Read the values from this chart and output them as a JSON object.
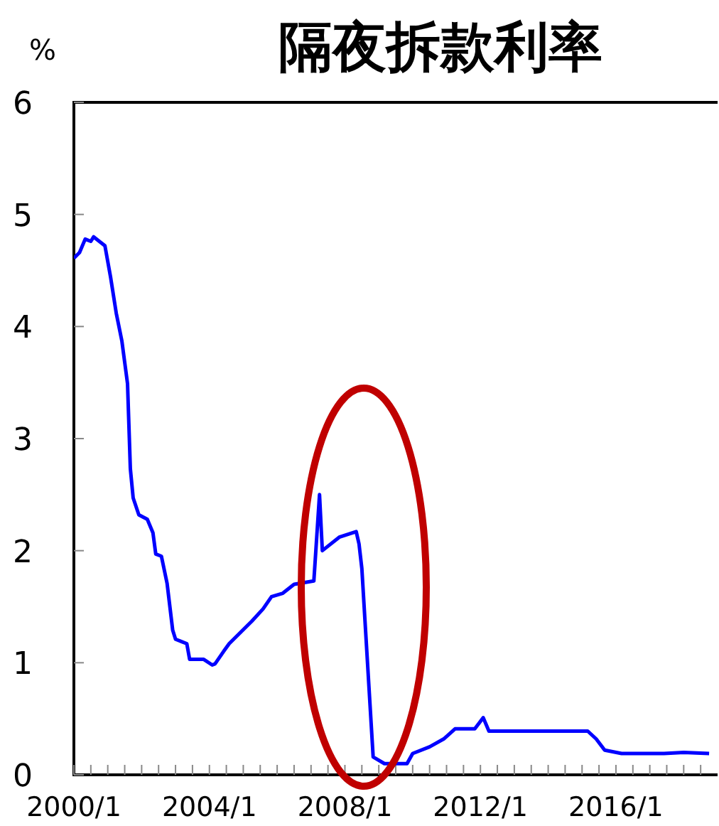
{
  "chart_data": {
    "type": "line",
    "title": "隔夜拆款利率",
    "ylabel": "%",
    "x": [
      "2000-01",
      "2000-03",
      "2000-05",
      "2000-07",
      "2000-08",
      "2000-10",
      "2000-12",
      "2001-02",
      "2001-04",
      "2001-06",
      "2001-08",
      "2001-09",
      "2001-10",
      "2001-12",
      "2002-03",
      "2002-05",
      "2002-06",
      "2002-08",
      "2002-10",
      "2002-12",
      "2003-01",
      "2003-05",
      "2003-06",
      "2003-11",
      "2004-02",
      "2004-03",
      "2004-06",
      "2004-08",
      "2004-12",
      "2005-04",
      "2005-08",
      "2005-11",
      "2006-03",
      "2006-07",
      "2007-02",
      "2007-04",
      "2007-05",
      "2007-11",
      "2008-05",
      "2008-06",
      "2008-07",
      "2008-11",
      "2009-03",
      "2009-11",
      "2010-01",
      "2010-07",
      "2010-12",
      "2011-04",
      "2011-11",
      "2012-02",
      "2012-04",
      "2015-03",
      "2015-06",
      "2015-09",
      "2016-03",
      "2017-06",
      "2018-01",
      "2018-10"
    ],
    "series": [
      {
        "color": "#0000ff",
        "values": [
          4.61,
          4.66,
          4.78,
          4.76,
          4.8,
          4.76,
          4.72,
          4.44,
          4.12,
          3.87,
          3.49,
          2.73,
          2.47,
          2.32,
          2.28,
          2.16,
          1.97,
          1.95,
          1.71,
          1.29,
          1.21,
          1.17,
          1.03,
          1.03,
          0.98,
          0.99,
          1.1,
          1.17,
          1.27,
          1.37,
          1.48,
          1.59,
          1.62,
          1.7,
          1.73,
          2.5,
          2.0,
          2.12,
          2.17,
          2.06,
          1.84,
          0.16,
          0.1,
          0.1,
          0.19,
          0.25,
          0.32,
          0.41,
          0.41,
          0.51,
          0.39,
          0.39,
          0.32,
          0.22,
          0.19,
          0.19,
          0.2,
          0.19
        ]
      }
    ],
    "xlim": [
      "2000-01",
      "2019-01"
    ],
    "xticks": [
      {
        "value": "2000-01",
        "label": "2000/1"
      },
      {
        "value": "2000-07",
        "label": null
      },
      {
        "value": "2001-01",
        "label": null
      },
      {
        "value": "2001-07",
        "label": null
      },
      {
        "value": "2002-01",
        "label": null
      },
      {
        "value": "2002-07",
        "label": null
      },
      {
        "value": "2003-01",
        "label": null
      },
      {
        "value": "2003-07",
        "label": null
      },
      {
        "value": "2004-01",
        "label": "2004/1"
      },
      {
        "value": "2004-07",
        "label": null
      },
      {
        "value": "2005-01",
        "label": null
      },
      {
        "value": "2005-07",
        "label": null
      },
      {
        "value": "2006-01",
        "label": null
      },
      {
        "value": "2006-07",
        "label": null
      },
      {
        "value": "2007-01",
        "label": null
      },
      {
        "value": "2007-07",
        "label": null
      },
      {
        "value": "2008-01",
        "label": "2008/1"
      },
      {
        "value": "2008-07",
        "label": null
      },
      {
        "value": "2009-01",
        "label": null
      },
      {
        "value": "2009-07",
        "label": null
      },
      {
        "value": "2010-01",
        "label": null
      },
      {
        "value": "2010-07",
        "label": null
      },
      {
        "value": "2011-01",
        "label": null
      },
      {
        "value": "2011-07",
        "label": null
      },
      {
        "value": "2012-01",
        "label": "2012/1"
      },
      {
        "value": "2012-07",
        "label": null
      },
      {
        "value": "2013-01",
        "label": null
      },
      {
        "value": "2013-07",
        "label": null
      },
      {
        "value": "2014-01",
        "label": null
      },
      {
        "value": "2014-07",
        "label": null
      },
      {
        "value": "2015-01",
        "label": null
      },
      {
        "value": "2015-07",
        "label": null
      },
      {
        "value": "2016-01",
        "label": "2016/1"
      },
      {
        "value": "2016-07",
        "label": null
      },
      {
        "value": "2017-01",
        "label": null
      },
      {
        "value": "2017-07",
        "label": null
      },
      {
        "value": "2018-01",
        "label": null
      },
      {
        "value": "2018-07",
        "label": null
      }
    ],
    "ylim": [
      0,
      6
    ],
    "yticks": [
      0,
      1,
      2,
      3,
      4,
      5,
      6
    ],
    "grid": false,
    "marker": "none",
    "line_style": "solid"
  }
}
